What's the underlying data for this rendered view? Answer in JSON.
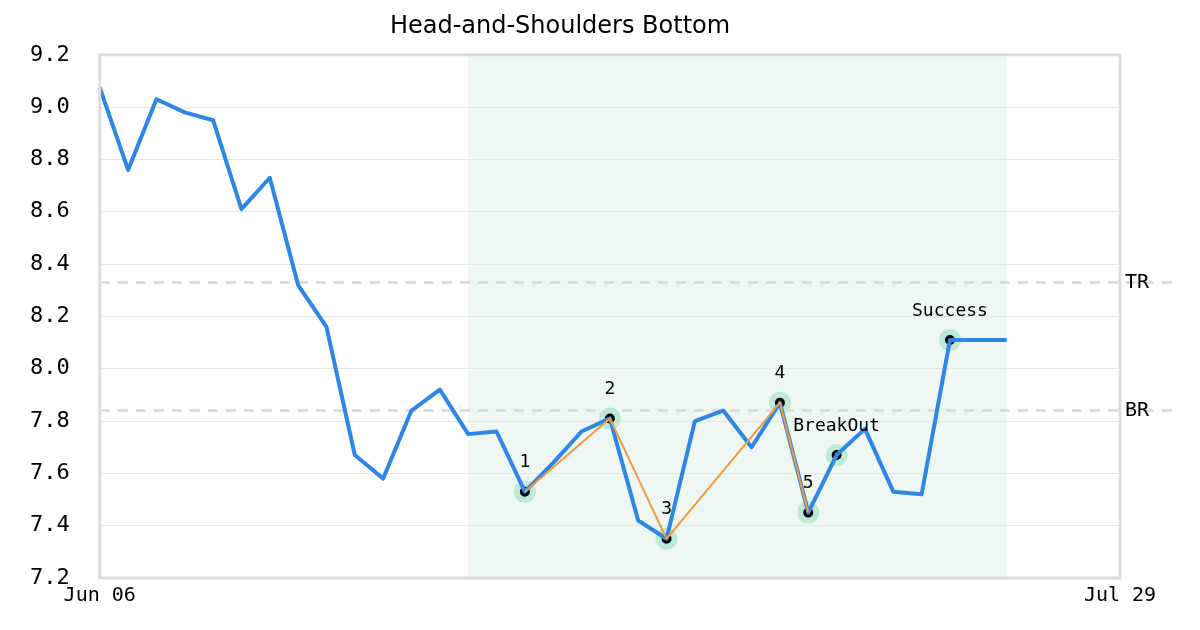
{
  "chart_data": {
    "type": "line",
    "title": "Head-and-Shoulders Bottom",
    "categories": [
      "Jun 06",
      null,
      null,
      null,
      null,
      null,
      null,
      null,
      null,
      null,
      null,
      null,
      null,
      null,
      null,
      null,
      null,
      null,
      null,
      null,
      null,
      null,
      null,
      null,
      null,
      null,
      null,
      null,
      null,
      null,
      null,
      null,
      null,
      null,
      null,
      null,
      "Jul 29"
    ],
    "ylim": [
      7.2,
      9.2
    ],
    "yticks": [
      7.2,
      7.4,
      7.6,
      7.8,
      {
        "value": 8,
        "label": "8.0"
      },
      8.2,
      8.4,
      8.6,
      8.8,
      {
        "value": 9,
        "label": "9.0"
      },
      9.2
    ],
    "grid": "y",
    "legend": false,
    "series": [
      {
        "color": "#2e86e6",
        "marker": "none",
        "values": [
          9.075,
          8.76,
          9.03,
          8.98,
          8.95,
          8.61,
          8.73,
          8.32,
          8.16,
          7.67,
          7.58,
          7.84,
          7.92,
          7.75,
          7.76,
          7.53,
          7.64,
          7.76,
          7.81,
          7.42,
          7.35,
          7.8,
          7.84,
          7.7,
          7.87,
          7.45,
          7.67,
          7.77,
          7.53,
          7.52,
          8.11,
          8.11,
          8.11,
          null,
          null,
          null,
          null
        ]
      },
      {
        "color": "#f59a3c",
        "marker": "none",
        "values": [
          null,
          null,
          null,
          null,
          null,
          null,
          null,
          null,
          null,
          null,
          null,
          null,
          null,
          null,
          null,
          7.53,
          null,
          null,
          7.81,
          null,
          7.35,
          null,
          null,
          null,
          7.87,
          7.45,
          null,
          null,
          null,
          null,
          null,
          null,
          null,
          null,
          null,
          null,
          null
        ]
      },
      {
        "type": "scatter",
        "color": "#bde9d5",
        "marker": "circle",
        "values": [
          null,
          null,
          null,
          null,
          null,
          null,
          null,
          null,
          null,
          null,
          null,
          null,
          null,
          null,
          null,
          7.53,
          null,
          null,
          7.81,
          null,
          7.35,
          null,
          null,
          null,
          7.87,
          7.45,
          7.67,
          null,
          null,
          null,
          8.11,
          null,
          null,
          null,
          null,
          null,
          null
        ]
      }
    ],
    "ref_lines": [
      {
        "axis": "y",
        "value": 8.33,
        "label": "TR",
        "color": "#dddddd",
        "line_style": "dashed"
      },
      {
        "axis": "y",
        "value": 7.84,
        "label": "BR",
        "color": "#dddddd",
        "line_style": "dashed"
      }
    ],
    "annotations": [
      "1",
      "2",
      "3",
      "4",
      "5",
      "BreakOut",
      "Success"
    ]
  }
}
